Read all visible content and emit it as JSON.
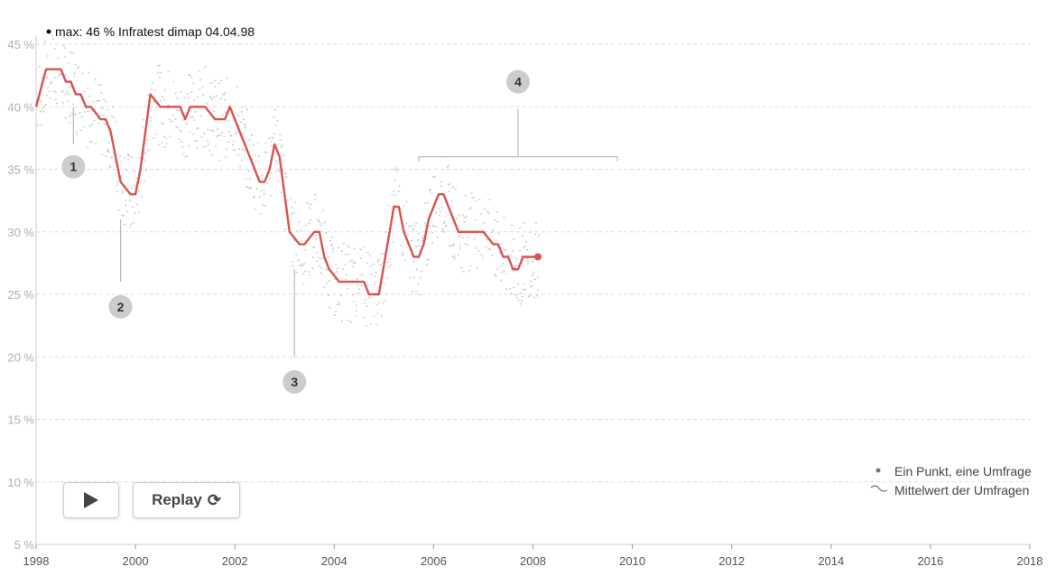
{
  "chart_data": {
    "type": "line",
    "xlim": [
      1998,
      2018
    ],
    "ylim": [
      5,
      45
    ],
    "x_ticks": [
      "1998",
      "2000",
      "2002",
      "2004",
      "2006",
      "2008",
      "2010",
      "2012",
      "2014",
      "2016",
      "2018"
    ],
    "y_ticks": [
      "45 %",
      "40 %",
      "35 %",
      "30 %",
      "25 %",
      "20 %",
      "15 %",
      "10 %",
      "5 %"
    ],
    "max_label": "max: 46 % Infratest dimap 04.04.98",
    "line_color": "#d9534f",
    "dot_color": "#999999",
    "series": [
      {
        "x": [
          1998.0,
          1998.2,
          1998.5,
          1998.6,
          1998.7,
          1998.8,
          1998.9,
          1999.0,
          1999.1,
          1999.3,
          1999.4,
          1999.5,
          1999.6,
          1999.7,
          1999.9,
          2000.0,
          2000.1,
          2000.2,
          2000.3,
          2000.5,
          2000.7,
          2000.9,
          2001.0,
          2001.1,
          2001.4,
          2001.6,
          2001.8,
          2001.9,
          2002.1,
          2002.3,
          2002.4,
          2002.5,
          2002.6,
          2002.7,
          2002.8,
          2002.9,
          2003.0,
          2003.1,
          2003.3,
          2003.4,
          2003.6,
          2003.7,
          2003.8,
          2003.9,
          2004.1,
          2004.3,
          2004.4,
          2004.6,
          2004.7,
          2004.9,
          2005.2,
          2005.3,
          2005.4,
          2005.5,
          2005.6,
          2005.7,
          2005.8,
          2005.9,
          2006.0,
          2006.1,
          2006.2,
          2006.3,
          2006.5,
          2007.0,
          2007.2,
          2007.3,
          2007.4,
          2007.5,
          2007.6,
          2007.7,
          2007.8,
          2008.0,
          2008.1
        ],
        "values": [
          40,
          43,
          43,
          42,
          42,
          41,
          41,
          40,
          40,
          39,
          39,
          38,
          36,
          34,
          33,
          33,
          35,
          38,
          41,
          40,
          40,
          40,
          39,
          40,
          40,
          39,
          39,
          40,
          38,
          36,
          35,
          34,
          34,
          35,
          37,
          36,
          33,
          30,
          29,
          29,
          30,
          30,
          28,
          27,
          26,
          26,
          26,
          26,
          25,
          25,
          32,
          32,
          30,
          29,
          28,
          28,
          29,
          31,
          32,
          33,
          33,
          32,
          30,
          30,
          29,
          29,
          28,
          28,
          27,
          27,
          28,
          28,
          28
        ]
      }
    ],
    "callouts": [
      {
        "label": "1",
        "x": 1998.75,
        "y_line_start": 40,
        "y_line_end": 37,
        "y_badge": 35.2
      },
      {
        "label": "2",
        "x": 1999.7,
        "y_line_start": 31,
        "y_line_end": 26,
        "y_badge": 24
      },
      {
        "label": "3",
        "x": 2003.2,
        "y_line_start": 27,
        "y_line_end": 20,
        "y_badge": 18
      },
      {
        "label": "4",
        "x": 2005.7,
        "x_end": 2009.7,
        "y_bracket": 36,
        "y_stem_top": 39.8,
        "y_badge": 42
      }
    ],
    "legend": [
      "Ein Punkt, eine Umfrage",
      "Mittelwert der Umfragen"
    ],
    "legend_position": "bottom-right"
  },
  "controls": {
    "replay_label": "Replay",
    "play_icon": "play-icon",
    "replay_icon": "refresh-icon"
  }
}
